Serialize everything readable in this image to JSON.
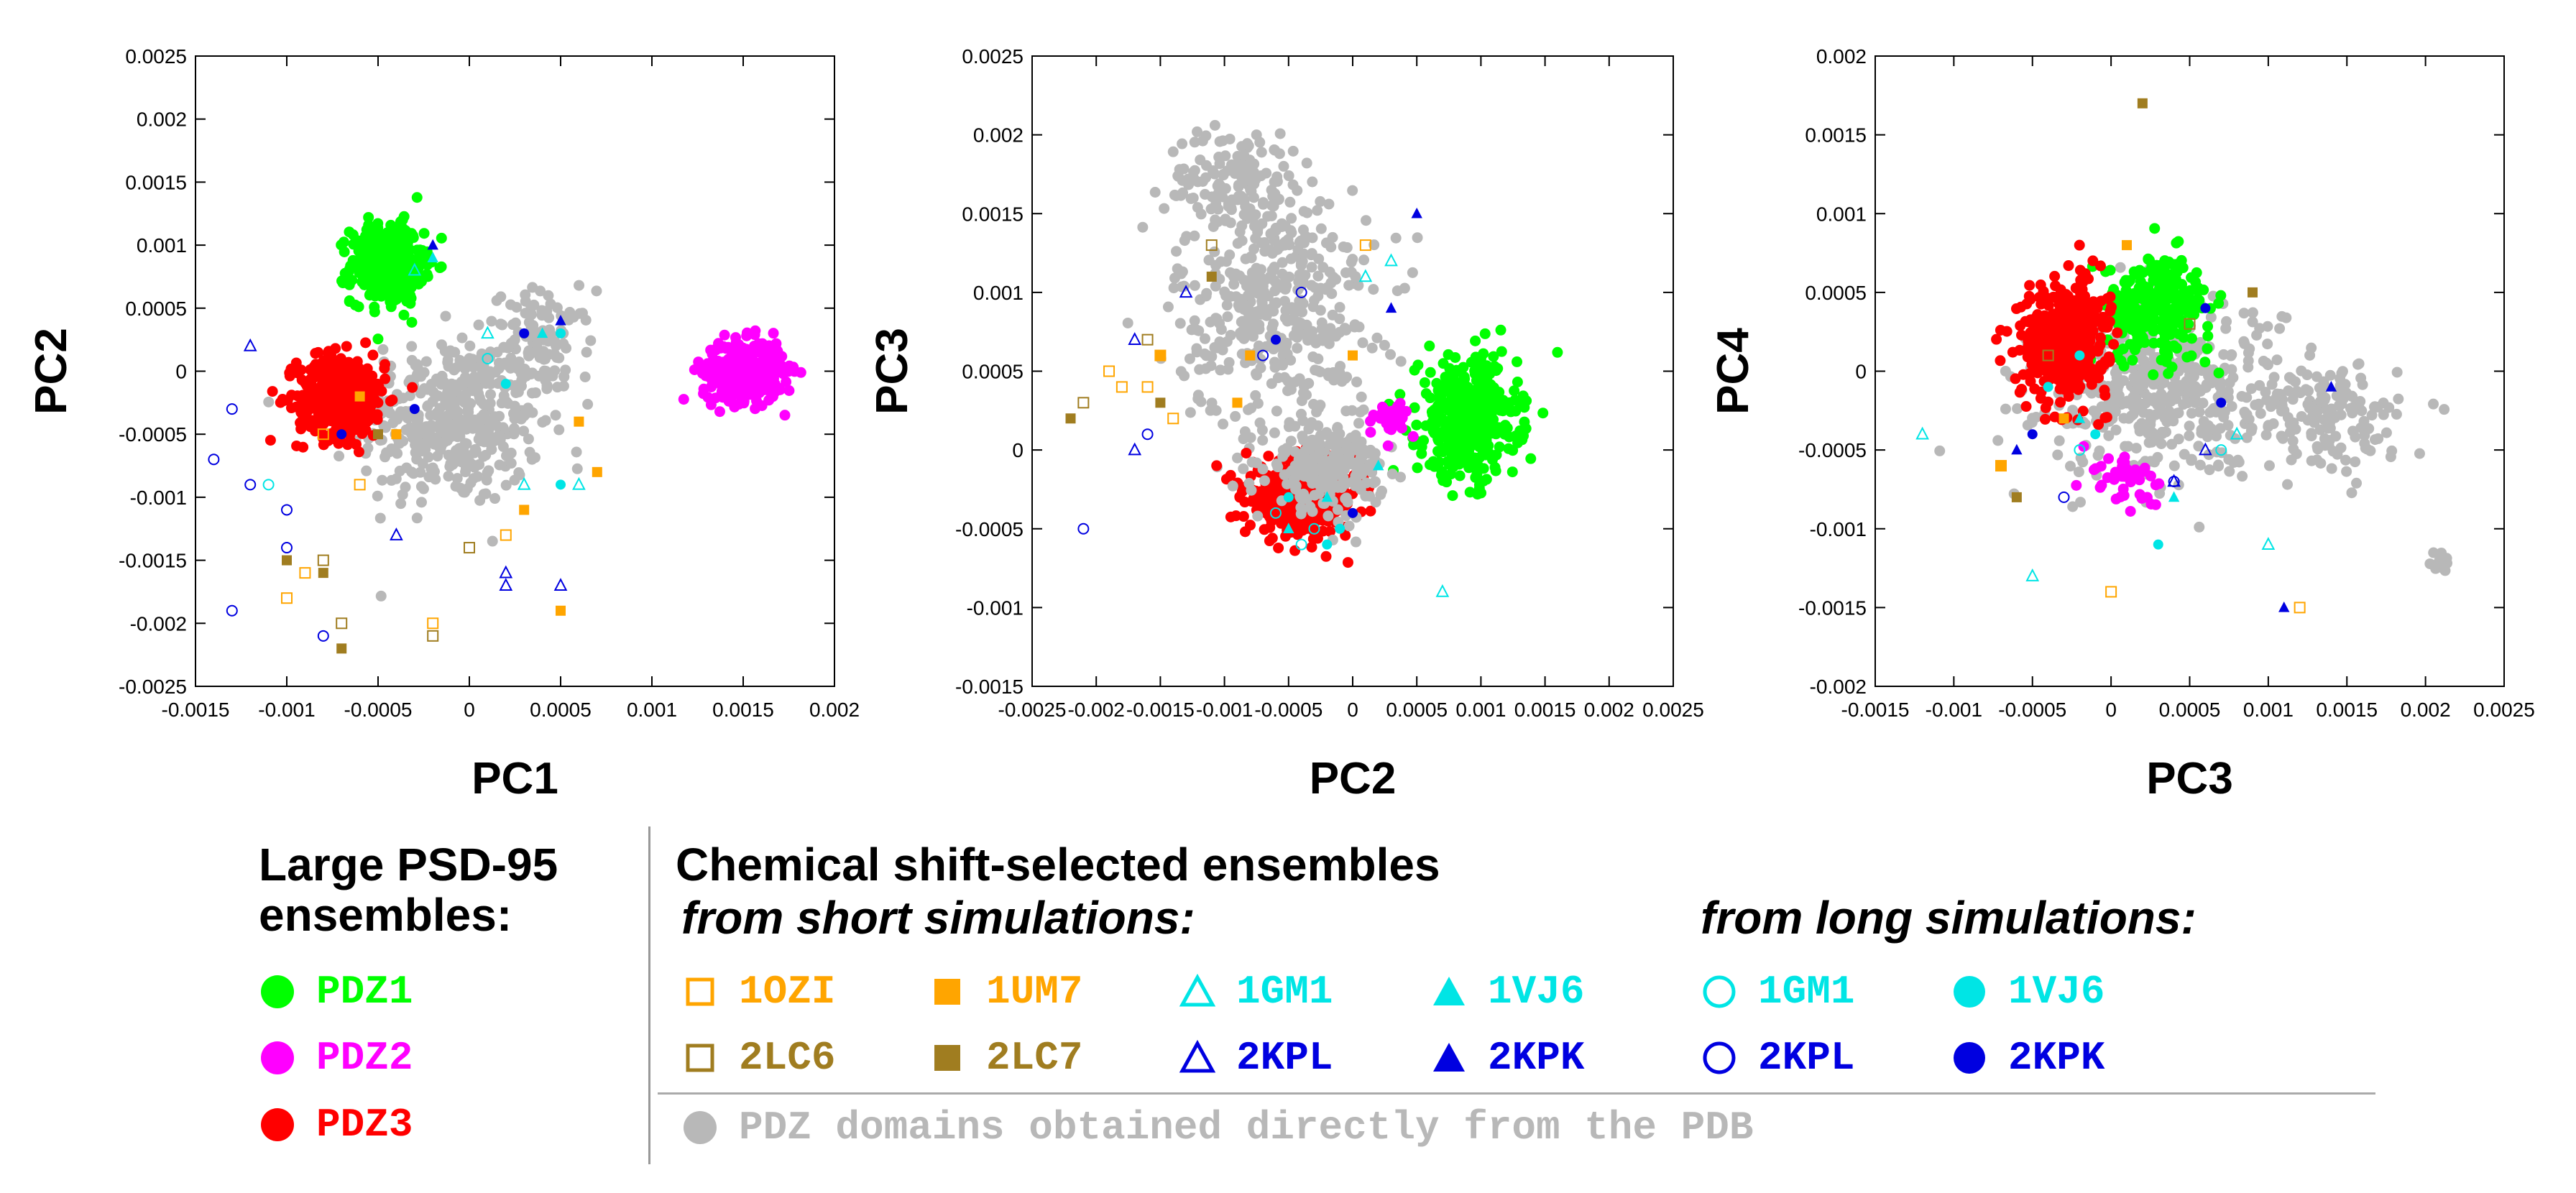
{
  "colors": {
    "PDZ1": "#00ff00",
    "PDZ2": "#ff00ff",
    "PDZ3": "#ff0000",
    "pdb": "#b8b8b8",
    "orange": "#ffa500",
    "olive": "#a07d20",
    "cyan": "#00e5e5",
    "blue": "#0000e0"
  },
  "chart_data": [
    {
      "type": "scatter",
      "title": "",
      "xlabel": "PC1",
      "ylabel": "PC2",
      "xlim": [
        -0.0015,
        0.002
      ],
      "ylim": [
        -0.0025,
        0.0025
      ],
      "xticks": [
        "-0.0015",
        "-0.001",
        "-0.0005",
        "0",
        "0.0005",
        "0.001",
        "0.0015",
        "0.002"
      ],
      "yticks": [
        "-0.0025",
        "-0.002",
        "-0.0015",
        "-0.001",
        "-0.0005",
        "0",
        "0.0005",
        "0.001",
        "0.0015",
        "0.002",
        "0.0025"
      ],
      "clusters": [
        {
          "series": "PDB",
          "center": [
            -0.0001,
            -0.0004
          ],
          "spread": [
            0.00045,
            0.0006
          ],
          "count": 420
        },
        {
          "series": "PDB",
          "center": [
            0.0004,
            0.0002
          ],
          "spread": [
            0.00025,
            0.0004
          ],
          "count": 120
        },
        {
          "series": "PDZ1",
          "center": [
            -0.00045,
            0.00085
          ],
          "spread": [
            0.00018,
            0.00028
          ],
          "count": 380
        },
        {
          "series": "PDZ3",
          "center": [
            -0.0007,
            -0.0002
          ],
          "spread": [
            0.00022,
            0.0003
          ],
          "count": 420
        },
        {
          "series": "PDZ2",
          "center": [
            0.0015,
            0.0
          ],
          "spread": [
            0.0002,
            0.00022
          ],
          "count": 360
        }
      ],
      "markers": [
        {
          "series": "1OZI",
          "points": [
            [
              -0.0008,
              -0.0005
            ],
            [
              -0.0006,
              -0.0009
            ],
            [
              0.0002,
              -0.0013
            ],
            [
              -0.0009,
              -0.0016
            ],
            [
              -0.001,
              -0.0018
            ],
            [
              -0.0002,
              -0.002
            ]
          ]
        },
        {
          "series": "1UM7",
          "points": [
            [
              -0.0006,
              -0.0002
            ],
            [
              0.0003,
              -0.0011
            ],
            [
              0.0006,
              -0.0004
            ],
            [
              0.0005,
              -0.0019
            ],
            [
              -0.0004,
              -0.0005
            ],
            [
              0.0007,
              -0.0008
            ]
          ]
        },
        {
          "series": "2LC6",
          "points": [
            [
              -0.0008,
              -0.0015
            ],
            [
              -0.0002,
              -0.0021
            ],
            [
              0.0,
              -0.0014
            ],
            [
              -0.0007,
              -0.002
            ]
          ]
        },
        {
          "series": "2LC7",
          "points": [
            [
              -0.001,
              -0.0015
            ],
            [
              -0.0007,
              -0.0022
            ],
            [
              -0.0008,
              -0.0016
            ],
            [
              -0.0005,
              -0.0005
            ]
          ]
        },
        {
          "series": "1GM1s",
          "points": [
            [
              0.0001,
              0.0003
            ],
            [
              0.0003,
              -0.0009
            ],
            [
              0.0006,
              -0.0009
            ],
            [
              -0.0003,
              0.0008
            ]
          ]
        },
        {
          "series": "2KPLs",
          "points": [
            [
              -0.0012,
              0.0002
            ],
            [
              0.0002,
              -0.0017
            ],
            [
              0.0005,
              -0.0017
            ],
            [
              -0.0004,
              -0.0013
            ],
            [
              0.0002,
              -0.0016
            ]
          ]
        },
        {
          "series": "1VJ6s",
          "points": [
            [
              0.0004,
              0.0003
            ],
            [
              -0.0002,
              0.0009
            ]
          ]
        },
        {
          "series": "2KPKs",
          "points": [
            [
              -0.0002,
              0.001
            ],
            [
              0.0005,
              0.0004
            ]
          ]
        },
        {
          "series": "1GM1l",
          "points": [
            [
              0.0001,
              0.0001
            ],
            [
              -0.0011,
              -0.0009
            ]
          ]
        },
        {
          "series": "2KPLl",
          "points": [
            [
              -0.0014,
              -0.0007
            ],
            [
              -0.0013,
              -0.0003
            ],
            [
              -0.0012,
              -0.0009
            ],
            [
              -0.0008,
              -0.0021
            ],
            [
              -0.001,
              -0.0011
            ],
            [
              -0.0013,
              -0.0019
            ],
            [
              -0.001,
              -0.0014
            ]
          ]
        },
        {
          "series": "1VJ6l",
          "points": [
            [
              0.0005,
              0.0003
            ],
            [
              0.0002,
              -0.0001
            ],
            [
              0.0005,
              -0.0009
            ]
          ]
        },
        {
          "series": "2KPKl",
          "points": [
            [
              -0.0003,
              -0.0003
            ],
            [
              -0.0007,
              -0.0005
            ],
            [
              0.0003,
              0.0003
            ]
          ]
        }
      ]
    },
    {
      "type": "scatter",
      "title": "",
      "xlabel": "PC2",
      "ylabel": "PC3",
      "xlim": [
        -0.0025,
        0.0025
      ],
      "ylim": [
        -0.0015,
        0.0025
      ],
      "xticks": [
        "-0.0025",
        "-0.002",
        "-0.0015",
        "-0.001",
        "-0.0005",
        "0",
        "0.0005",
        "0.001",
        "0.0015",
        "0.002",
        "0.0025"
      ],
      "yticks": [
        "-0.0015",
        "-0.001",
        "-0.0005",
        "0",
        "0.0005",
        "0.001",
        "0.0015",
        "0.002",
        "0.0025"
      ],
      "clusters": [
        {
          "series": "PDB",
          "center": [
            -0.0006,
            0.0009
          ],
          "spread": [
            0.0007,
            0.0007
          ],
          "count": 420
        },
        {
          "series": "PDB",
          "center": [
            -0.0009,
            0.0017
          ],
          "spread": [
            0.0005,
            0.0003
          ],
          "count": 140
        },
        {
          "series": "PDZ1",
          "center": [
            0.0009,
            0.0002
          ],
          "spread": [
            0.00035,
            0.00035
          ],
          "count": 420
        },
        {
          "series": "PDZ3",
          "center": [
            -0.0004,
            -0.0003
          ],
          "spread": [
            0.0004,
            0.00022
          ],
          "count": 420
        },
        {
          "series": "PDB",
          "center": [
            -0.0002,
            -0.0001
          ],
          "spread": [
            0.0004,
            0.00025
          ],
          "count": 240
        },
        {
          "series": "PDZ2",
          "center": [
            0.0003,
            0.0002
          ],
          "spread": [
            0.00012,
            0.0001
          ],
          "count": 40
        }
      ],
      "markers": [
        {
          "series": "1OZI",
          "points": [
            [
              -0.0019,
              0.0005
            ],
            [
              -0.0015,
              0.0006
            ],
            [
              -0.0016,
              0.0004
            ],
            [
              -0.0014,
              0.0002
            ],
            [
              -0.0018,
              0.0004
            ],
            [
              0.0001,
              0.0013
            ]
          ]
        },
        {
          "series": "1UM7",
          "points": [
            [
              -0.0015,
              0.0006
            ],
            [
              -0.0008,
              0.0006
            ],
            [
              -0.0009,
              0.0003
            ],
            [
              0.0,
              0.0006
            ]
          ]
        },
        {
          "series": "2LC6",
          "points": [
            [
              -0.0021,
              0.0003
            ],
            [
              -0.0016,
              0.0007
            ],
            [
              -0.0011,
              0.0013
            ]
          ]
        },
        {
          "series": "2LC7",
          "points": [
            [
              -0.0022,
              0.0002
            ],
            [
              -0.0015,
              0.0003
            ],
            [
              -0.0011,
              0.0011
            ]
          ]
        },
        {
          "series": "1GM1s",
          "points": [
            [
              0.0007,
              -0.0009
            ],
            [
              0.0003,
              0.0012
            ],
            [
              0.0001,
              0.0011
            ]
          ]
        },
        {
          "series": "2KPLs",
          "points": [
            [
              -0.0017,
              0.0007
            ],
            [
              -0.0013,
              0.001
            ],
            [
              -0.0017,
              0.0
            ]
          ]
        },
        {
          "series": "1VJ6s",
          "points": [
            [
              -0.0005,
              -0.0005
            ],
            [
              -0.0002,
              -0.0003
            ],
            [
              0.0002,
              -0.0001
            ]
          ]
        },
        {
          "series": "2KPKs",
          "points": [
            [
              0.0005,
              0.0015
            ],
            [
              0.0003,
              0.0009
            ]
          ]
        },
        {
          "series": "1GM1l",
          "points": [
            [
              -0.0003,
              -0.0005
            ],
            [
              -0.0006,
              -0.0004
            ],
            [
              -0.0004,
              -0.0006
            ]
          ]
        },
        {
          "series": "2KPLl",
          "points": [
            [
              -0.0021,
              -0.0005
            ],
            [
              -0.0016,
              0.0001
            ],
            [
              -0.0004,
              0.001
            ],
            [
              -0.0007,
              0.0006
            ]
          ]
        },
        {
          "series": "1VJ6l",
          "points": [
            [
              -0.0005,
              -0.0003
            ],
            [
              -0.0001,
              -0.0005
            ],
            [
              -0.0002,
              -0.0006
            ]
          ]
        },
        {
          "series": "2KPKl",
          "points": [
            [
              -0.0006,
              0.0007
            ],
            [
              0.0,
              -0.0004
            ]
          ]
        }
      ]
    },
    {
      "type": "scatter",
      "title": "",
      "xlabel": "PC3",
      "ylabel": "PC4",
      "xlim": [
        -0.0015,
        0.0025
      ],
      "ylim": [
        -0.002,
        0.002
      ],
      "xticks": [
        "-0.0015",
        "-0.001",
        "-0.0005",
        "0",
        "0.0005",
        "0.001",
        "0.0015",
        "0.002",
        "0.0025"
      ],
      "yticks": [
        "-0.002",
        "-0.0015",
        "-0.001",
        "-0.0005",
        "0",
        "0.0005",
        "0.001",
        "0.0015",
        "0.002"
      ],
      "clusters": [
        {
          "series": "PDB",
          "center": [
            0.0003,
            -0.0001
          ],
          "spread": [
            0.0007,
            0.0005
          ],
          "count": 520
        },
        {
          "series": "PDB",
          "center": [
            0.0014,
            -0.0003
          ],
          "spread": [
            0.0004,
            0.0003
          ],
          "count": 140
        },
        {
          "series": "PDB",
          "center": [
            0.0021,
            -0.0012
          ],
          "spread": [
            5e-05,
            6e-05
          ],
          "count": 20
        },
        {
          "series": "PDZ1",
          "center": [
            0.0003,
            0.0004
          ],
          "spread": [
            0.0003,
            0.0003
          ],
          "count": 260
        },
        {
          "series": "PDZ3",
          "center": [
            -0.0003,
            0.0002
          ],
          "spread": [
            0.00025,
            0.00033
          ],
          "count": 440
        },
        {
          "series": "PDZ2",
          "center": [
            0.0001,
            -0.0007
          ],
          "spread": [
            0.0002,
            0.0002
          ],
          "count": 40
        }
      ],
      "markers": [
        {
          "series": "1OZI",
          "points": [
            [
              0.0,
              -0.0014
            ],
            [
              0.0012,
              -0.0015
            ],
            [
              -0.0007,
              -0.0006
            ]
          ]
        },
        {
          "series": "1UM7",
          "points": [
            [
              -0.0007,
              -0.0006
            ],
            [
              -0.0003,
              -0.0003
            ],
            [
              0.0001,
              0.0008
            ]
          ]
        },
        {
          "series": "2LC6",
          "points": [
            [
              0.0005,
              0.0003
            ],
            [
              -0.0004,
              0.0001
            ]
          ]
        },
        {
          "series": "2LC7",
          "points": [
            [
              0.0002,
              0.0017
            ],
            [
              -0.0006,
              -0.0008
            ],
            [
              0.0009,
              0.0005
            ]
          ]
        },
        {
          "series": "1GM1s",
          "points": [
            [
              -0.0012,
              -0.0004
            ],
            [
              -0.0005,
              -0.0013
            ],
            [
              0.001,
              -0.0011
            ],
            [
              0.0008,
              -0.0004
            ]
          ]
        },
        {
          "series": "2KPLs",
          "points": [
            [
              0.0004,
              -0.0007
            ],
            [
              0.0006,
              -0.0005
            ]
          ]
        },
        {
          "series": "1VJ6s",
          "points": [
            [
              -0.0002,
              -0.0003
            ],
            [
              0.0004,
              -0.0008
            ]
          ]
        },
        {
          "series": "2KPKs",
          "points": [
            [
              0.0014,
              -0.0001
            ],
            [
              0.0011,
              -0.0015
            ],
            [
              -0.0006,
              -0.0005
            ]
          ]
        },
        {
          "series": "1GM1l",
          "points": [
            [
              0.0007,
              -0.0005
            ],
            [
              -0.0002,
              -0.0005
            ]
          ]
        },
        {
          "series": "2KPLl",
          "points": [
            [
              -0.0003,
              -0.0008
            ],
            [
              0.0004,
              -0.0007
            ]
          ]
        },
        {
          "series": "1VJ6l",
          "points": [
            [
              -0.0004,
              -0.0001
            ],
            [
              -0.0002,
              0.0001
            ],
            [
              0.0003,
              -0.0011
            ],
            [
              -0.0001,
              -0.0004
            ]
          ]
        },
        {
          "series": "2KPKl",
          "points": [
            [
              0.0007,
              -0.0002
            ],
            [
              0.0006,
              0.0004
            ],
            [
              -0.0005,
              -0.0004
            ]
          ]
        }
      ]
    }
  ],
  "legend": {
    "large_title_line1": "Large PSD-95",
    "large_title_line2": "ensembles:",
    "large_items": [
      {
        "label": "PDZ1",
        "color": "#00ff00"
      },
      {
        "label": "PDZ2",
        "color": "#ff00ff"
      },
      {
        "label": "PDZ3",
        "color": "#ff0000"
      }
    ],
    "cs_title": "Chemical shift-selected ensembles",
    "short_title": "from short simulations:",
    "long_title": "from long simulations:",
    "short_items": [
      {
        "label": "1OZI",
        "color": "#ffa500",
        "shape": "open-square"
      },
      {
        "label": "1UM7",
        "color": "#ffa500",
        "shape": "filled-square"
      },
      {
        "label": "1GM1",
        "color": "#00e5e5",
        "shape": "open-triangle"
      },
      {
        "label": "1VJ6",
        "color": "#00e5e5",
        "shape": "filled-triangle"
      },
      {
        "label": "2LC6",
        "color": "#a07d20",
        "shape": "open-square"
      },
      {
        "label": "2LC7",
        "color": "#a07d20",
        "shape": "filled-square"
      },
      {
        "label": "2KPL",
        "color": "#0000e0",
        "shape": "open-triangle"
      },
      {
        "label": "2KPK",
        "color": "#0000e0",
        "shape": "filled-triangle"
      }
    ],
    "long_items": [
      {
        "label": "1GM1",
        "color": "#00e5e5",
        "shape": "open-circle"
      },
      {
        "label": "1VJ6",
        "color": "#00e5e5",
        "shape": "filled-circle"
      },
      {
        "label": "2KPL",
        "color": "#0000e0",
        "shape": "open-circle"
      },
      {
        "label": "2KPK",
        "color": "#0000e0",
        "shape": "filled-circle"
      }
    ],
    "pdb_label": "PDZ domains obtained directly from the PDB"
  }
}
